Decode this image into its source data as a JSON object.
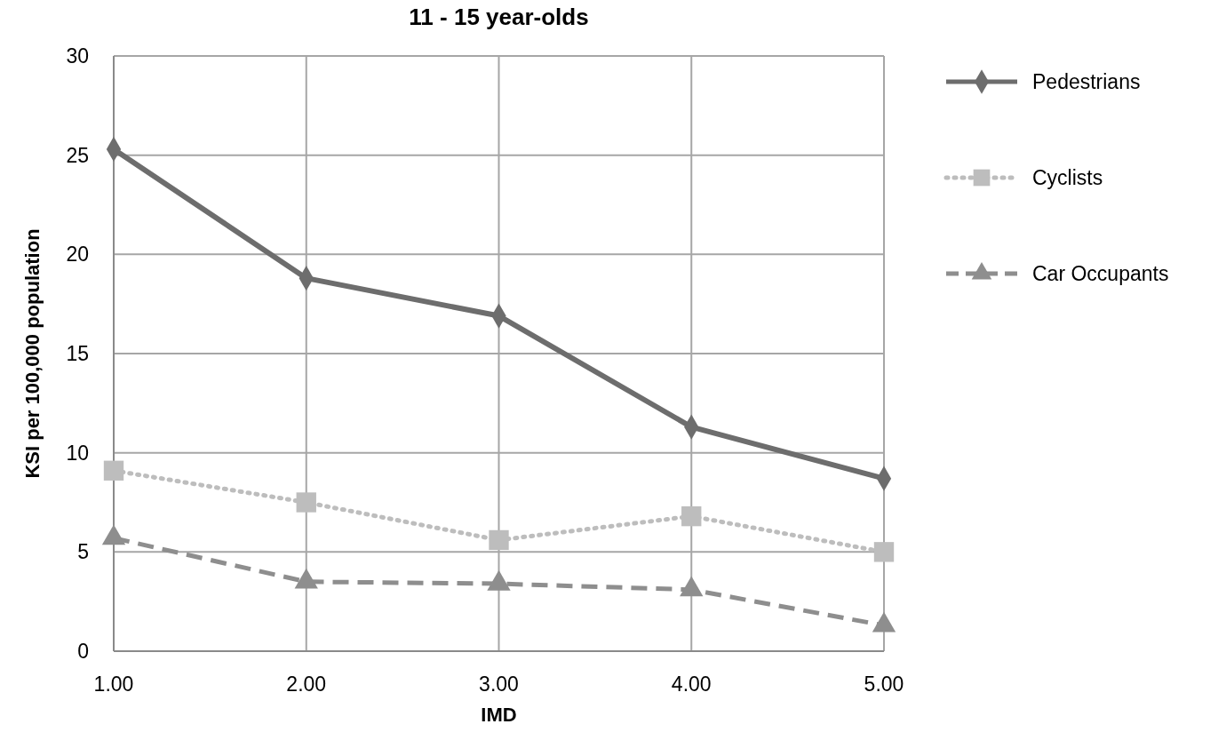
{
  "chart_data": {
    "type": "line",
    "title": "11 - 15 year-olds",
    "xlabel": "IMD",
    "ylabel": "KSI per 100,000 population",
    "x": [
      1,
      2,
      3,
      4,
      5
    ],
    "xlim": [
      1,
      5
    ],
    "xticks": [
      {
        "value": 1,
        "label": "1.00"
      },
      {
        "value": 2,
        "label": "2.00"
      },
      {
        "value": 3,
        "label": "3.00"
      },
      {
        "value": 4,
        "label": "4.00"
      },
      {
        "value": 5,
        "label": "5.00"
      }
    ],
    "ylim": [
      0,
      30
    ],
    "yticks": [
      0,
      5,
      10,
      15,
      20,
      25,
      30
    ],
    "grid": true,
    "legend": "right",
    "series": [
      {
        "name": "Pedestrians",
        "color": "#6d6d6d",
        "marker": "diamond",
        "line_style": "solid",
        "values": [
          25.3,
          18.8,
          16.9,
          11.3,
          8.7
        ]
      },
      {
        "name": "Cyclists",
        "color": "#bdbdbd",
        "marker": "square",
        "line_style": "dotted",
        "values": [
          9.1,
          7.5,
          5.6,
          6.8,
          5.0
        ]
      },
      {
        "name": "Car Occupants",
        "color": "#8e8e8e",
        "marker": "triangle",
        "line_style": "dashed",
        "values": [
          5.7,
          3.5,
          3.4,
          3.1,
          1.3
        ]
      }
    ]
  }
}
